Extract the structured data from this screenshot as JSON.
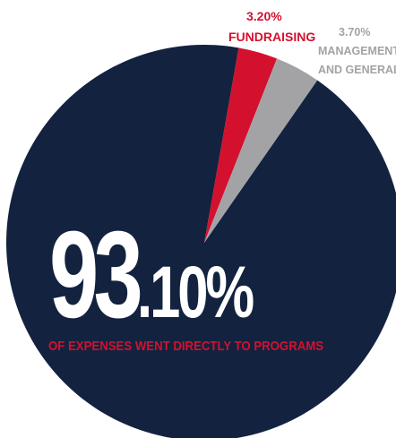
{
  "chart_data": {
    "type": "pie",
    "slices": [
      {
        "label_lines": [
          "FUNDRAISING"
        ],
        "value_text": "3.20%",
        "value": 3.2,
        "color": "#d3112f"
      },
      {
        "label_lines": [
          "MANAGEMENT",
          "AND GENERAL"
        ],
        "value_text": "3.70%",
        "value": 3.7,
        "color": "#a3a3a6"
      },
      {
        "label_lines": [],
        "value_text": "93.10%",
        "value": 93.1,
        "color": "#12223f"
      }
    ],
    "headline": {
      "integer": "93",
      "decimal": ".10%",
      "caption": "OF EXPENSES WENT DIRECTLY TO PROGRAMS"
    }
  }
}
